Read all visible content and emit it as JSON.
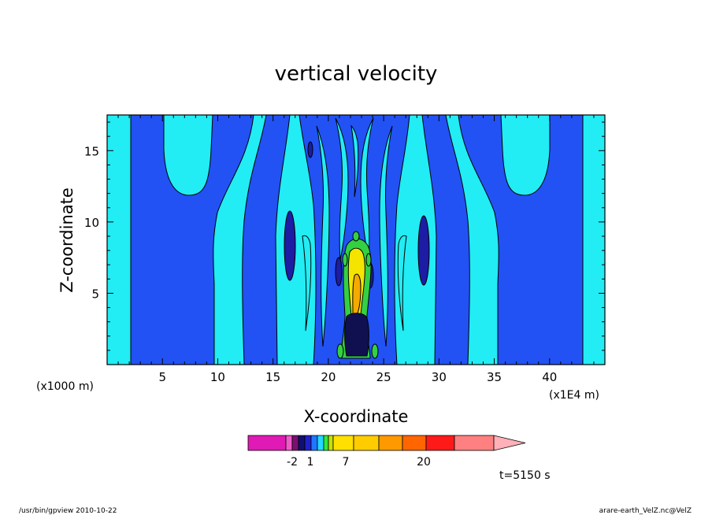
{
  "chart_data": {
    "type": "heatmap",
    "title": "vertical velocity",
    "xlabel": "X-coordinate",
    "ylabel": "Z-coordinate",
    "x_unit_label": "(x1000 m)",
    "x_scale_label": "(x1E4 m)",
    "xlim": [
      0,
      45
    ],
    "ylim": [
      0,
      17.5
    ],
    "x_ticks": [
      "5",
      "10",
      "15",
      "20",
      "25",
      "30",
      "35",
      "40"
    ],
    "y_ticks": [
      "5",
      "10",
      "15"
    ],
    "colorbar": {
      "colors": [
        "#e01ab4",
        "#ee5cc8",
        "#7a1070",
        "#101070",
        "#2020c8",
        "#1e78ff",
        "#24d8ff",
        "#30e840",
        "#c8e000",
        "#ffe000",
        "#ffcc00",
        "#ff9900",
        "#ff6600",
        "#ff1a1a",
        "#ff8080",
        "#ffb0b8"
      ],
      "labels": [
        "-2",
        "1",
        "7",
        "20"
      ]
    },
    "colors": {
      "cyan": "#22ecf4",
      "blue": "#2252f4",
      "dark": "#1c1ca4",
      "green": "#34d044",
      "yellow": "#f4e400",
      "orange": "#f4aa00",
      "navy": "#101050"
    }
  },
  "annotation": {
    "time": "t=5150 s"
  },
  "footer": {
    "left": "/usr/bin/gpview  2010-10-22",
    "right": "arare-earth_VelZ.nc@VelZ"
  }
}
